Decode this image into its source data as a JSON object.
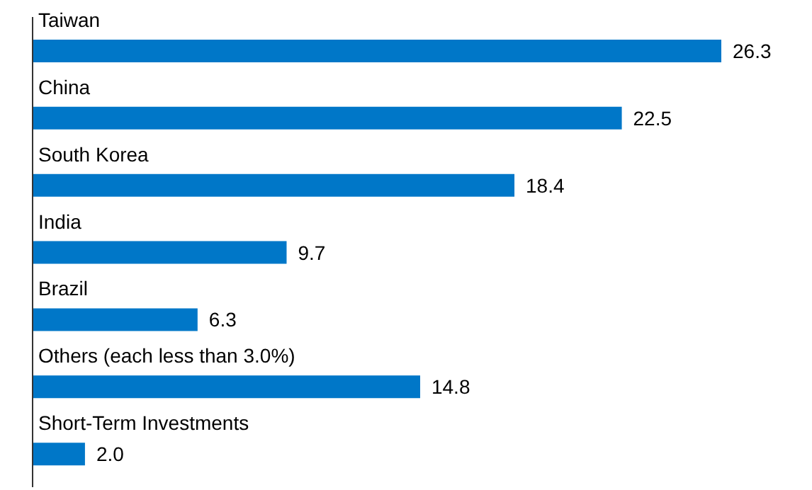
{
  "chart_data": {
    "type": "bar",
    "orientation": "horizontal",
    "categories": [
      "Taiwan",
      "China",
      "South Korea",
      "India",
      "Brazil",
      "Others (each less than 3.0%)",
      "Short-Term Investments"
    ],
    "values": [
      26.3,
      22.5,
      18.4,
      9.7,
      6.3,
      14.8,
      2.0
    ],
    "value_labels": [
      "26.3",
      "22.5",
      "18.4",
      "9.7",
      "6.3",
      "14.8",
      "2.0"
    ],
    "color": "#0077c8"
  }
}
